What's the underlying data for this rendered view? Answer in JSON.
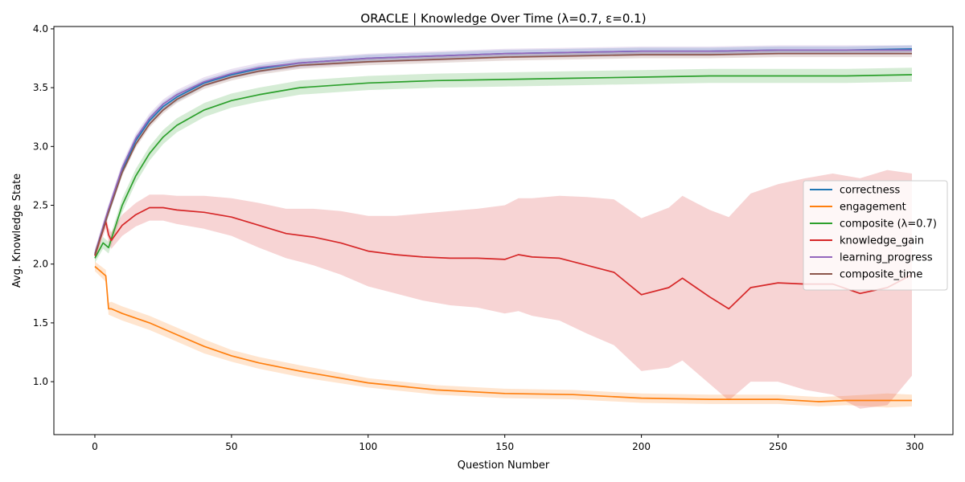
{
  "chart_data": {
    "type": "line",
    "title": "ORACLE | Knowledge Over Time (λ=0.7, ε=0.1)",
    "xlabel": "Question Number",
    "ylabel": "Avg. Knowledge State",
    "xlim": [
      -15,
      314
    ],
    "ylim": [
      0.55,
      4.02
    ],
    "xticks": [
      0,
      50,
      100,
      150,
      200,
      250,
      300
    ],
    "yticks": [
      1.0,
      1.5,
      2.0,
      2.5,
      3.0,
      3.5,
      4.0
    ],
    "ytick_labels": [
      "1.0",
      "1.5",
      "2.0",
      "2.5",
      "3.0",
      "3.5",
      "4.0"
    ],
    "grid": false,
    "legend_placement": "center-right",
    "series": [
      {
        "name": "correctness",
        "color": "#1f77b4",
        "x": [
          0,
          5,
          10,
          15,
          20,
          25,
          30,
          40,
          50,
          60,
          75,
          100,
          125,
          150,
          175,
          200,
          225,
          250,
          275,
          299
        ],
        "y": [
          2.08,
          2.45,
          2.8,
          3.05,
          3.22,
          3.34,
          3.42,
          3.54,
          3.61,
          3.66,
          3.71,
          3.75,
          3.77,
          3.79,
          3.8,
          3.81,
          3.81,
          3.82,
          3.82,
          3.83
        ],
        "band": [
          0.03,
          0.04,
          0.04,
          0.04,
          0.04,
          0.04,
          0.04,
          0.03,
          0.03,
          0.03,
          0.03,
          0.03,
          0.03,
          0.03,
          0.03,
          0.03,
          0.03,
          0.03,
          0.03,
          0.03
        ]
      },
      {
        "name": "engagement",
        "color": "#ff7f0e",
        "x": [
          0,
          4,
          5,
          6,
          10,
          20,
          30,
          40,
          50,
          60,
          75,
          100,
          125,
          150,
          175,
          200,
          225,
          250,
          265,
          275,
          290,
          299
        ],
        "y": [
          1.98,
          1.9,
          1.62,
          1.62,
          1.58,
          1.5,
          1.4,
          1.3,
          1.22,
          1.16,
          1.09,
          0.99,
          0.93,
          0.9,
          0.89,
          0.86,
          0.85,
          0.85,
          0.83,
          0.84,
          0.84,
          0.84
        ],
        "band": [
          0.04,
          0.05,
          0.05,
          0.06,
          0.06,
          0.06,
          0.06,
          0.06,
          0.05,
          0.05,
          0.05,
          0.04,
          0.04,
          0.04,
          0.04,
          0.04,
          0.04,
          0.04,
          0.04,
          0.04,
          0.06,
          0.05
        ]
      },
      {
        "name": "composite (λ=0.7)",
        "color": "#2ca02c",
        "x": [
          0,
          3,
          5,
          10,
          15,
          20,
          25,
          30,
          40,
          50,
          60,
          75,
          100,
          125,
          150,
          175,
          200,
          225,
          250,
          275,
          299
        ],
        "y": [
          2.05,
          2.18,
          2.14,
          2.5,
          2.75,
          2.94,
          3.08,
          3.18,
          3.31,
          3.39,
          3.44,
          3.5,
          3.54,
          3.56,
          3.57,
          3.58,
          3.59,
          3.6,
          3.6,
          3.6,
          3.61
        ],
        "band": [
          0.04,
          0.05,
          0.05,
          0.06,
          0.06,
          0.06,
          0.06,
          0.06,
          0.06,
          0.06,
          0.06,
          0.06,
          0.06,
          0.06,
          0.06,
          0.06,
          0.06,
          0.06,
          0.06,
          0.06,
          0.06
        ]
      },
      {
        "name": "knowledge_gain",
        "color": "#d62728",
        "x": [
          0,
          4,
          5,
          6,
          10,
          15,
          20,
          25,
          30,
          40,
          50,
          60,
          70,
          80,
          90,
          100,
          110,
          120,
          130,
          140,
          150,
          155,
          160,
          170,
          180,
          190,
          200,
          210,
          215,
          220,
          225,
          232,
          240,
          250,
          260,
          270,
          280,
          290,
          299
        ],
        "y": [
          2.07,
          2.36,
          2.25,
          2.2,
          2.33,
          2.42,
          2.48,
          2.48,
          2.46,
          2.44,
          2.4,
          2.33,
          2.26,
          2.23,
          2.18,
          2.11,
          2.08,
          2.06,
          2.05,
          2.05,
          2.04,
          2.08,
          2.06,
          2.05,
          1.99,
          1.93,
          1.74,
          1.8,
          1.88,
          1.8,
          1.72,
          1.62,
          1.8,
          1.84,
          1.83,
          1.83,
          1.75,
          1.8,
          1.91
        ],
        "band": [
          0.03,
          0.06,
          0.06,
          0.07,
          0.09,
          0.1,
          0.11,
          0.11,
          0.12,
          0.14,
          0.16,
          0.19,
          0.21,
          0.24,
          0.27,
          0.3,
          0.33,
          0.37,
          0.4,
          0.42,
          0.46,
          0.48,
          0.5,
          0.53,
          0.58,
          0.62,
          0.65,
          0.68,
          0.7,
          0.72,
          0.74,
          0.78,
          0.8,
          0.84,
          0.9,
          0.94,
          0.98,
          1.0,
          0.86
        ]
      },
      {
        "name": "learning_progress",
        "color": "#9467bd",
        "x": [
          0,
          5,
          10,
          15,
          20,
          25,
          30,
          40,
          50,
          60,
          75,
          100,
          125,
          150,
          175,
          200,
          225,
          250,
          275,
          299
        ],
        "y": [
          2.09,
          2.47,
          2.82,
          3.07,
          3.24,
          3.36,
          3.44,
          3.55,
          3.62,
          3.67,
          3.71,
          3.75,
          3.77,
          3.79,
          3.8,
          3.81,
          3.81,
          3.82,
          3.82,
          3.82
        ],
        "band": [
          0.04,
          0.04,
          0.04,
          0.04,
          0.04,
          0.04,
          0.04,
          0.04,
          0.04,
          0.04,
          0.04,
          0.04,
          0.04,
          0.04,
          0.04,
          0.04,
          0.04,
          0.04,
          0.04,
          0.04
        ]
      },
      {
        "name": "composite_time",
        "color": "#8c564b",
        "x": [
          0,
          5,
          10,
          15,
          20,
          25,
          30,
          40,
          50,
          60,
          75,
          100,
          125,
          150,
          175,
          200,
          225,
          250,
          275,
          299
        ],
        "y": [
          2.08,
          2.44,
          2.78,
          3.02,
          3.19,
          3.31,
          3.4,
          3.52,
          3.59,
          3.64,
          3.69,
          3.72,
          3.74,
          3.76,
          3.77,
          3.78,
          3.78,
          3.79,
          3.79,
          3.79
        ],
        "band": [
          0.03,
          0.03,
          0.03,
          0.03,
          0.03,
          0.03,
          0.03,
          0.03,
          0.03,
          0.03,
          0.03,
          0.03,
          0.03,
          0.03,
          0.03,
          0.03,
          0.03,
          0.03,
          0.03,
          0.03
        ]
      }
    ]
  }
}
